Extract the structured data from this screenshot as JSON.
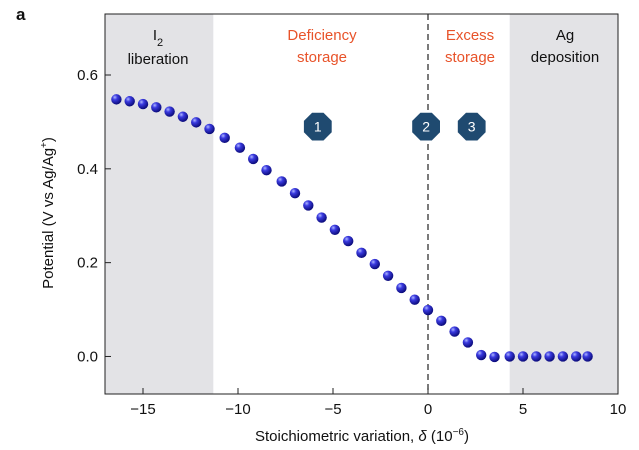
{
  "chart_data": {
    "type": "scatter",
    "panel_label": "a",
    "xlabel": "Stoichiometric variation, ",
    "xlabel_symbol": "δ",
    "xlabel_unit": " (10",
    "xlabel_exp": "−6",
    "xlabel_close": ")",
    "ylabel": "Potential (V vs Ag/Ag",
    "ylabel_sup": "+",
    "ylabel_close": ")",
    "xlim": [
      -17,
      10
    ],
    "ylim": [
      -0.08,
      0.73
    ],
    "xticks": [
      -15,
      -10,
      -5,
      0,
      5,
      10
    ],
    "xtick_labels": [
      "−15",
      "−10",
      "−5",
      "0",
      "5",
      "10"
    ],
    "yticks": [
      0.0,
      0.2,
      0.4,
      0.6
    ],
    "ytick_labels": [
      "0.0",
      "0.2",
      "0.4",
      "0.6"
    ],
    "grid": false,
    "dashed_line_x": 0,
    "regions": [
      {
        "x": [
          -17,
          -11.3
        ],
        "shaded": true,
        "label_lines": [
          "I",
          "liberation"
        ],
        "label_sub": "2",
        "color": "#111111"
      },
      {
        "x": [
          -11.3,
          0
        ],
        "shaded": false,
        "label_lines": [
          "Deficiency",
          "storage"
        ],
        "color": "#e8532a"
      },
      {
        "x": [
          0,
          4.3
        ],
        "shaded": false,
        "label_lines": [
          "Excess",
          "storage"
        ],
        "color": "#e8532a"
      },
      {
        "x": [
          4.3,
          10
        ],
        "shaded": true,
        "label_lines": [
          "Ag",
          "deposition"
        ],
        "color": "#111111"
      }
    ],
    "markers": [
      {
        "label": "1",
        "x": -5.8,
        "y": 0.49
      },
      {
        "label": "2",
        "x": -0.1,
        "y": 0.49
      },
      {
        "label": "3",
        "x": 2.3,
        "y": 0.49
      }
    ],
    "marker_color": "#1f4a70",
    "point_color": "#2020c8",
    "shade_color": "#e3e3e6",
    "series": [
      {
        "x": [
          -16.4,
          -15.7,
          -15.0,
          -14.3,
          -13.6,
          -12.9,
          -12.2,
          -11.5,
          -10.7,
          -9.9,
          -9.2,
          -8.5,
          -7.7,
          -7.0,
          -6.3,
          -5.6,
          -4.9,
          -4.2,
          -3.5,
          -2.8,
          -2.1,
          -1.4,
          -0.7,
          0.0,
          0.7,
          1.4,
          2.1,
          2.8,
          3.5,
          4.3,
          5.0,
          5.7,
          6.4,
          7.1,
          7.8,
          8.4
        ],
        "y": [
          0.548,
          0.544,
          0.538,
          0.531,
          0.522,
          0.511,
          0.499,
          0.485,
          0.466,
          0.445,
          0.421,
          0.397,
          0.373,
          0.348,
          0.322,
          0.296,
          0.27,
          0.246,
          0.221,
          0.197,
          0.172,
          0.146,
          0.121,
          0.099,
          0.076,
          0.053,
          0.03,
          0.003,
          -0.001,
          0.0,
          0.0,
          0.0,
          0.0,
          0.0,
          0.0,
          0.0
        ]
      }
    ]
  }
}
